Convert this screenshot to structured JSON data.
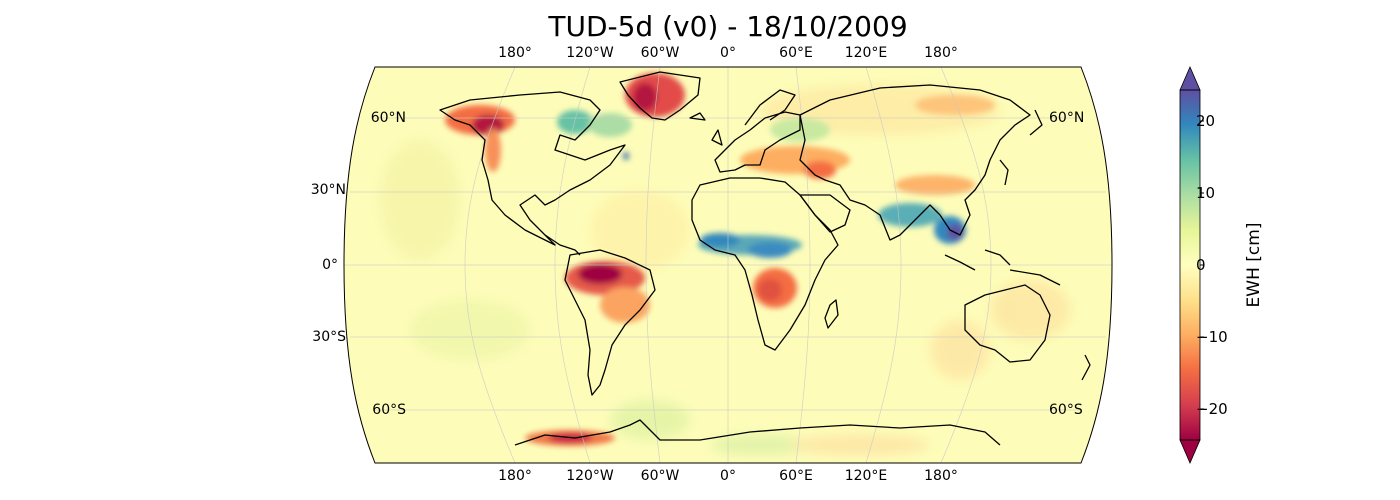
{
  "title": "TUD-5d (v0) - 18/10/2009",
  "map": {
    "projection": "Robinson",
    "variable": "EWH",
    "lon_ticks_top": [
      "180°",
      "120°W",
      "60°W",
      "0°",
      "60°E",
      "120°E",
      "180°"
    ],
    "lon_ticks_bottom": [
      "180°",
      "120°W",
      "60°W",
      "0°",
      "60°E",
      "120°E",
      "180°"
    ],
    "lat_ticks_left": [
      "60°N",
      "30°N",
      "0°",
      "30°S",
      "60°S"
    ],
    "lat_ticks_right": [
      "60°N",
      "60°S"
    ],
    "gridlines": true,
    "colormap": "Spectral",
    "anomalies": [
      {
        "region": "Greenland",
        "sign": "negative"
      },
      {
        "region": "Alaska / NW Canada",
        "sign": "negative"
      },
      {
        "region": "Hudson Bay",
        "sign": "positive"
      },
      {
        "region": "Amazon",
        "sign": "negative"
      },
      {
        "region": "Sahel / West Africa",
        "sign": "positive"
      },
      {
        "region": "Southern Africa (Zambia/Angola)",
        "sign": "negative"
      },
      {
        "region": "Indochina / Bay of Bengal",
        "sign": "positive"
      },
      {
        "region": "Middle East / Caspian",
        "sign": "negative"
      },
      {
        "region": "West Antarctica",
        "sign": "negative"
      }
    ]
  },
  "colorbar": {
    "label": "EWH [cm]",
    "ticks": [
      "20",
      "10",
      "0",
      "−10",
      "−20"
    ],
    "range": [
      -25,
      25
    ],
    "colors": {
      "min": "#9e0142",
      "c1": "#d53e4f",
      "c2": "#f46d43",
      "c3": "#fdae61",
      "c4": "#fee08b",
      "mid": "#ffffbf",
      "c6": "#e6f598",
      "c7": "#abdda4",
      "c8": "#66c2a5",
      "c9": "#3288bd",
      "max": "#5e4fa2"
    }
  }
}
